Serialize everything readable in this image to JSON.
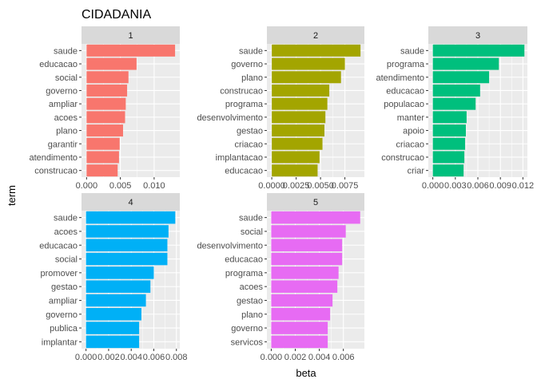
{
  "chart_data": {
    "type": "bar",
    "orientation": "horizontal",
    "title": "CIDADANIA",
    "xlabel": "beta",
    "ylabel": "term",
    "grid": true,
    "facet_strip_color": "#d9d9d9",
    "panel_background": "#ebebeb",
    "panels": [
      {
        "name": "1",
        "color": "#f8766d",
        "xlim": [
          -0.00075,
          0.0138
        ],
        "xticks": [
          0.0,
          0.005,
          0.01
        ],
        "xtick_labels": [
          "0.000",
          "0.005",
          "0.010"
        ],
        "categories": [
          "saude",
          "educacao",
          "social",
          "governo",
          "ampliar",
          "acoes",
          "plano",
          "garantir",
          "atendimento",
          "construcao"
        ],
        "values": [
          0.0131,
          0.0074,
          0.0062,
          0.006,
          0.0058,
          0.0057,
          0.0054,
          0.0049,
          0.0048,
          0.0046
        ]
      },
      {
        "name": "2",
        "color": "#a3a500",
        "xlim": [
          -0.0005,
          0.0095
        ],
        "xticks": [
          0.0,
          0.0025,
          0.005,
          0.0075
        ],
        "xtick_labels": [
          "0.0000",
          "0.0025",
          "0.0050",
          "0.0075"
        ],
        "categories": [
          "saude",
          "governo",
          "plano",
          "construcao",
          "programa",
          "desenvolvimento",
          "gestao",
          "criacao",
          "implantacao",
          "educacao"
        ],
        "values": [
          0.0091,
          0.0075,
          0.0071,
          0.0059,
          0.0057,
          0.0055,
          0.0054,
          0.0052,
          0.0049,
          0.0047
        ]
      },
      {
        "name": "3",
        "color": "#00bf7d",
        "xlim": [
          -0.0006,
          0.0126
        ],
        "xticks": [
          0.0,
          0.003,
          0.006,
          0.009,
          0.012
        ],
        "xtick_labels": [
          "0.000",
          "0.003",
          "0.006",
          "0.009",
          "0.012"
        ],
        "categories": [
          "saude",
          "programa",
          "atendimento",
          "educacao",
          "populacao",
          "manter",
          "apoio",
          "criacao",
          "construcao",
          "criar"
        ],
        "values": [
          0.0122,
          0.0088,
          0.0075,
          0.0063,
          0.0057,
          0.0045,
          0.0044,
          0.0043,
          0.0042,
          0.0041
        ]
      },
      {
        "name": "4",
        "color": "#00b0f6",
        "xlim": [
          -0.0004,
          0.0083
        ],
        "xticks": [
          0.0,
          0.002,
          0.004,
          0.006,
          0.008
        ],
        "xtick_labels": [
          "0.000",
          "0.002",
          "0.004",
          "0.006",
          "0.008"
        ],
        "categories": [
          "saude",
          "acoes",
          "educacao",
          "social",
          "promover",
          "gestao",
          "ampliar",
          "governo",
          "publica",
          "implantar"
        ],
        "values": [
          0.0079,
          0.0073,
          0.0072,
          0.0072,
          0.006,
          0.0057,
          0.0053,
          0.0049,
          0.0047,
          0.0047
        ]
      },
      {
        "name": "5",
        "color": "#e76bf3",
        "xlim": [
          -0.00036,
          0.00775
        ],
        "xticks": [
          0.0,
          0.002,
          0.004,
          0.006
        ],
        "xtick_labels": [
          "0.000",
          "0.002",
          "0.004",
          "0.006"
        ],
        "categories": [
          "saude",
          "social",
          "desenvolvimento",
          "educacao",
          "programa",
          "acoes",
          "gestao",
          "plano",
          "governo",
          "servicos"
        ],
        "values": [
          0.0074,
          0.0062,
          0.0059,
          0.0059,
          0.0056,
          0.0055,
          0.0051,
          0.0049,
          0.0047,
          0.0047
        ]
      }
    ]
  }
}
